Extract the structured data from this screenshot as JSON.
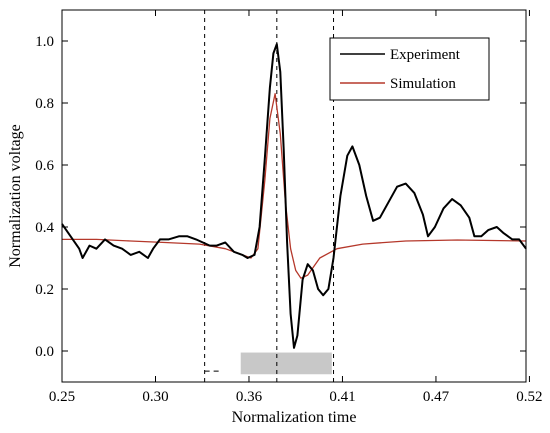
{
  "chart_data": {
    "type": "line",
    "xlabel": "Normalization time",
    "ylabel": "Normalization voltage",
    "xlim": [
      0.25,
      0.52
    ],
    "ylim": [
      -0.1,
      1.1
    ],
    "x_ticks": [
      "0.25",
      "0.30",
      "0.36",
      "0.41",
      "0.47",
      "0.52"
    ],
    "x_tick_values": [
      0.25,
      0.3044,
      0.3588,
      0.4132,
      0.4676,
      0.522
    ],
    "y_ticks": [
      "0.0",
      "0.2",
      "0.4",
      "0.6",
      "0.8",
      "1.0"
    ],
    "y_tick_values": [
      0.0,
      0.2,
      0.4,
      0.6,
      0.8,
      1.0
    ],
    "legend_position": "top-right",
    "grid": false,
    "series": [
      {
        "name": "Experiment",
        "color": "#000000",
        "points": [
          [
            0.25,
            0.41
          ],
          [
            0.255,
            0.37
          ],
          [
            0.26,
            0.33
          ],
          [
            0.262,
            0.3
          ],
          [
            0.266,
            0.34
          ],
          [
            0.27,
            0.33
          ],
          [
            0.275,
            0.36
          ],
          [
            0.28,
            0.34
          ],
          [
            0.285,
            0.33
          ],
          [
            0.29,
            0.31
          ],
          [
            0.295,
            0.32
          ],
          [
            0.3,
            0.3
          ],
          [
            0.303,
            0.33
          ],
          [
            0.307,
            0.36
          ],
          [
            0.312,
            0.36
          ],
          [
            0.318,
            0.37
          ],
          [
            0.323,
            0.37
          ],
          [
            0.328,
            0.36
          ],
          [
            0.332,
            0.35
          ],
          [
            0.336,
            0.34
          ],
          [
            0.34,
            0.34
          ],
          [
            0.345,
            0.35
          ],
          [
            0.35,
            0.32
          ],
          [
            0.355,
            0.31
          ],
          [
            0.358,
            0.3
          ],
          [
            0.362,
            0.31
          ],
          [
            0.365,
            0.4
          ],
          [
            0.368,
            0.62
          ],
          [
            0.371,
            0.85
          ],
          [
            0.373,
            0.96
          ],
          [
            0.375,
            0.99
          ],
          [
            0.377,
            0.9
          ],
          [
            0.379,
            0.65
          ],
          [
            0.381,
            0.35
          ],
          [
            0.383,
            0.12
          ],
          [
            0.385,
            0.01
          ],
          [
            0.387,
            0.05
          ],
          [
            0.39,
            0.23
          ],
          [
            0.393,
            0.28
          ],
          [
            0.396,
            0.26
          ],
          [
            0.399,
            0.2
          ],
          [
            0.402,
            0.18
          ],
          [
            0.405,
            0.2
          ],
          [
            0.408,
            0.3
          ],
          [
            0.412,
            0.5
          ],
          [
            0.416,
            0.63
          ],
          [
            0.419,
            0.66
          ],
          [
            0.423,
            0.6
          ],
          [
            0.427,
            0.5
          ],
          [
            0.431,
            0.42
          ],
          [
            0.435,
            0.43
          ],
          [
            0.44,
            0.48
          ],
          [
            0.445,
            0.53
          ],
          [
            0.45,
            0.54
          ],
          [
            0.455,
            0.51
          ],
          [
            0.46,
            0.44
          ],
          [
            0.463,
            0.37
          ],
          [
            0.467,
            0.4
          ],
          [
            0.472,
            0.46
          ],
          [
            0.477,
            0.49
          ],
          [
            0.482,
            0.47
          ],
          [
            0.487,
            0.43
          ],
          [
            0.49,
            0.37
          ],
          [
            0.494,
            0.37
          ],
          [
            0.498,
            0.39
          ],
          [
            0.503,
            0.4
          ],
          [
            0.507,
            0.38
          ],
          [
            0.512,
            0.36
          ],
          [
            0.516,
            0.36
          ],
          [
            0.52,
            0.33
          ]
        ]
      },
      {
        "name": "Simulation",
        "color": "#b5382b",
        "points": [
          [
            0.25,
            0.36
          ],
          [
            0.27,
            0.36
          ],
          [
            0.29,
            0.355
          ],
          [
            0.31,
            0.35
          ],
          [
            0.33,
            0.345
          ],
          [
            0.345,
            0.33
          ],
          [
            0.355,
            0.31
          ],
          [
            0.36,
            0.3
          ],
          [
            0.364,
            0.33
          ],
          [
            0.368,
            0.55
          ],
          [
            0.371,
            0.75
          ],
          [
            0.374,
            0.83
          ],
          [
            0.377,
            0.7
          ],
          [
            0.38,
            0.48
          ],
          [
            0.383,
            0.33
          ],
          [
            0.386,
            0.26
          ],
          [
            0.389,
            0.235
          ],
          [
            0.393,
            0.245
          ],
          [
            0.4,
            0.3
          ],
          [
            0.41,
            0.33
          ],
          [
            0.425,
            0.345
          ],
          [
            0.45,
            0.355
          ],
          [
            0.48,
            0.358
          ],
          [
            0.52,
            0.355
          ]
        ]
      }
    ],
    "annotations": {
      "vertical_dashed_lines": [
        0.333,
        0.375,
        0.408
      ],
      "horizontal_dashed_segment": {
        "x": [
          0.333,
          0.342
        ],
        "y": -0.065
      },
      "shaded_band": {
        "x": [
          0.354,
          0.407
        ],
        "y": [
          -0.075,
          -0.005
        ],
        "color": "#c8c8c8"
      }
    }
  }
}
